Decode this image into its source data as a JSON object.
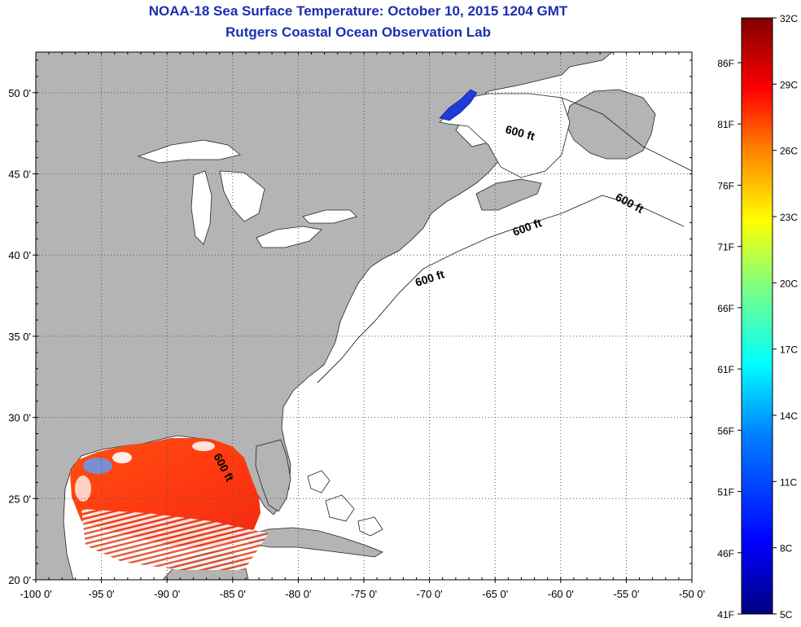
{
  "title": "NOAA-18 Sea Surface Temperature:  October 10, 2015 1204 GMT",
  "subtitle": "Rutgers Coastal Ocean Observation Lab",
  "map": {
    "lon_range": [
      -100,
      -50
    ],
    "lat_range": [
      20,
      52.5
    ],
    "lon_ticks": [
      "-100 0'",
      "-95 0'",
      "-90 0'",
      "-85 0'",
      "-80 0'",
      "-75 0'",
      "-70 0'",
      "-65 0'",
      "-60 0'",
      "-55 0'",
      "-50 0'"
    ],
    "lat_ticks": [
      "20 0'",
      "25 0'",
      "30 0'",
      "35 0'",
      "40 0'",
      "45 0'",
      "50 0'"
    ],
    "grid": true,
    "land_color": "#b4b4b4",
    "water_color": "#ffffff",
    "contour_labels": [
      "600 ft",
      "600 ft",
      "600 ft",
      "600 ft",
      "600 ft"
    ]
  },
  "colorbar": {
    "celsius_labels": [
      "32C",
      "29C",
      "26C",
      "23C",
      "20C",
      "17C",
      "14C",
      "11C",
      "8C",
      "5C"
    ],
    "fahrenheit_labels": [
      "86F",
      "81F",
      "76F",
      "71F",
      "66F",
      "61F",
      "56F",
      "51F",
      "46F",
      "41F"
    ],
    "range_c": [
      5,
      32
    ],
    "colors": [
      "#800000",
      "#ff0000",
      "#ff8000",
      "#ffff00",
      "#80ff80",
      "#00ffff",
      "#0080ff",
      "#0000ff",
      "#000080"
    ]
  }
}
